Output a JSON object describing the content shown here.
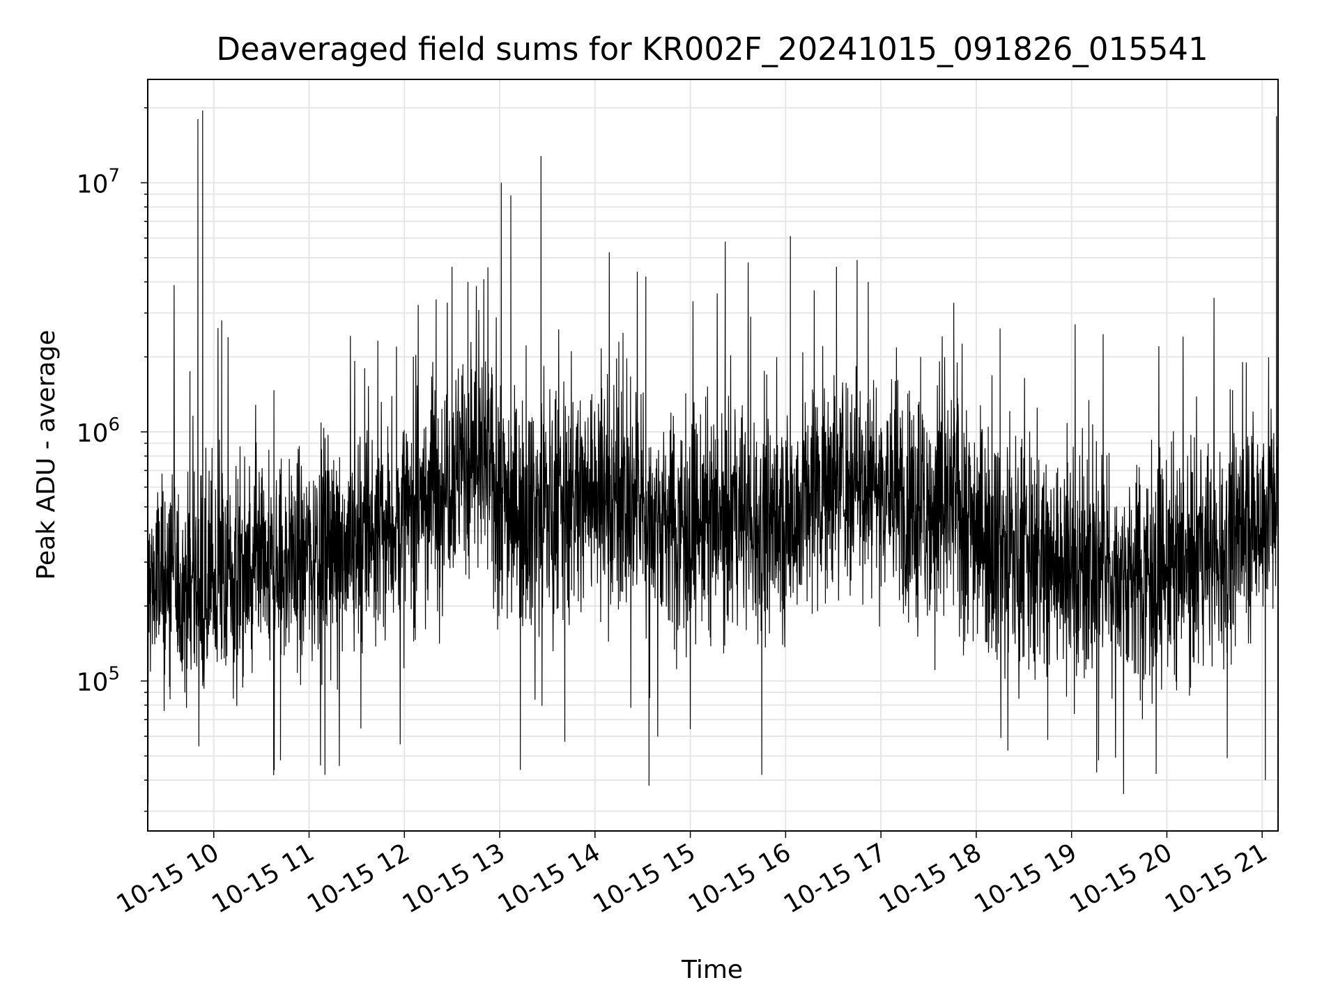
{
  "chart_data": {
    "type": "line",
    "title": "Deaveraged field sums for KR002F_20241015_091826_015541",
    "xlabel": "Time",
    "ylabel": "Peak ADU - average",
    "x_scale": "time",
    "y_scale": "log",
    "xlim": [
      "2024-10-15T09:18:26",
      "2024-10-15T21:10:00"
    ],
    "ylim": [
      25000,
      26000000
    ],
    "x_ticks": [
      {
        "value": "2024-10-15T10:00:00",
        "label": "10-15 10"
      },
      {
        "value": "2024-10-15T11:00:00",
        "label": "10-15 11"
      },
      {
        "value": "2024-10-15T12:00:00",
        "label": "10-15 12"
      },
      {
        "value": "2024-10-15T13:00:00",
        "label": "10-15 13"
      },
      {
        "value": "2024-10-15T14:00:00",
        "label": "10-15 14"
      },
      {
        "value": "2024-10-15T15:00:00",
        "label": "10-15 15"
      },
      {
        "value": "2024-10-15T16:00:00",
        "label": "10-15 16"
      },
      {
        "value": "2024-10-15T17:00:00",
        "label": "10-15 17"
      },
      {
        "value": "2024-10-15T18:00:00",
        "label": "10-15 18"
      },
      {
        "value": "2024-10-15T19:00:00",
        "label": "10-15 19"
      },
      {
        "value": "2024-10-15T20:00:00",
        "label": "10-15 20"
      },
      {
        "value": "2024-10-15T21:00:00",
        "label": "10-15 21"
      }
    ],
    "y_ticks": [
      {
        "value": 100000,
        "base": "10",
        "exp": "5"
      },
      {
        "value": 1000000,
        "base": "10",
        "exp": "6"
      },
      {
        "value": 10000000,
        "base": "10",
        "exp": "7"
      }
    ],
    "grid": true,
    "line_color": "#000000",
    "series": [
      {
        "baseline": [
          [
            "2024-10-15T09:18:26",
            250000
          ],
          [
            "2024-10-15T09:40:00",
            240000
          ],
          [
            "2024-10-15T10:00:00",
            250000
          ],
          [
            "2024-10-15T10:30:00",
            260000
          ],
          [
            "2024-10-15T11:00:00",
            330000
          ],
          [
            "2024-10-15T11:30:00",
            380000
          ],
          [
            "2024-10-15T12:00:00",
            430000
          ],
          [
            "2024-10-15T12:20:00",
            650000
          ],
          [
            "2024-10-15T12:45:00",
            800000
          ],
          [
            "2024-10-15T13:10:00",
            500000
          ],
          [
            "2024-10-15T13:40:00",
            500000
          ],
          [
            "2024-10-15T14:00:00",
            600000
          ],
          [
            "2024-10-15T14:30:00",
            480000
          ],
          [
            "2024-10-15T15:00:00",
            420000
          ],
          [
            "2024-10-15T15:30:00",
            450000
          ],
          [
            "2024-10-15T16:00:00",
            420000
          ],
          [
            "2024-10-15T16:20:00",
            650000
          ],
          [
            "2024-10-15T16:50:00",
            680000
          ],
          [
            "2024-10-15T17:20:00",
            500000
          ],
          [
            "2024-10-15T17:50:00",
            500000
          ],
          [
            "2024-10-15T18:20:00",
            330000
          ],
          [
            "2024-10-15T19:00:00",
            290000
          ],
          [
            "2024-10-15T19:30:00",
            270000
          ],
          [
            "2024-10-15T20:00:00",
            280000
          ],
          [
            "2024-10-15T20:30:00",
            320000
          ],
          [
            "2024-10-15T21:10:00",
            550000
          ]
        ],
        "spikes": [
          [
            "2024-10-15T09:18:40",
            32000
          ],
          [
            "2024-10-15T09:45:00",
            1750000
          ],
          [
            "2024-10-15T09:50:00",
            18000000
          ],
          [
            "2024-10-15T09:53:00",
            19500000
          ],
          [
            "2024-10-15T10:05:00",
            2800000
          ],
          [
            "2024-10-15T10:09:00",
            2400000
          ],
          [
            "2024-10-15T10:42:00",
            48000
          ],
          [
            "2024-10-15T11:10:00",
            42000
          ],
          [
            "2024-10-15T11:35:00",
            1800000
          ],
          [
            "2024-10-15T11:55:00",
            2200000
          ],
          [
            "2024-10-15T12:20:00",
            3400000
          ],
          [
            "2024-10-15T12:30:00",
            4600000
          ],
          [
            "2024-10-15T12:40:00",
            4000000
          ],
          [
            "2024-10-15T12:50:00",
            4100000
          ],
          [
            "2024-10-15T13:01:00",
            10000000
          ],
          [
            "2024-10-15T13:07:00",
            8900000
          ],
          [
            "2024-10-15T13:13:00",
            44000
          ],
          [
            "2024-10-15T13:26:00",
            12800000
          ],
          [
            "2024-10-15T13:41:00",
            57000
          ],
          [
            "2024-10-15T14:15:00",
            2300000
          ],
          [
            "2024-10-15T14:34:00",
            38000
          ],
          [
            "2024-10-15T14:32:00",
            4200000
          ],
          [
            "2024-10-15T15:22:00",
            5800000
          ],
          [
            "2024-10-15T15:38:00",
            2900000
          ],
          [
            "2024-10-15T15:45:00",
            42000
          ],
          [
            "2024-10-15T16:03:00",
            6100000
          ],
          [
            "2024-10-15T16:18:00",
            3700000
          ],
          [
            "2024-10-15T16:32:00",
            4600000
          ],
          [
            "2024-10-15T16:45:00",
            4900000
          ],
          [
            "2024-10-15T16:52:00",
            4000000
          ],
          [
            "2024-10-15T17:25:00",
            2000000
          ],
          [
            "2024-10-15T17:48:00",
            1900000
          ],
          [
            "2024-10-15T18:15:00",
            2600000
          ],
          [
            "2024-10-15T18:45:00",
            58000
          ],
          [
            "2024-10-15T19:17:00",
            48000
          ],
          [
            "2024-10-15T20:38:00",
            49000
          ],
          [
            "2024-10-15T20:50:00",
            1900000
          ],
          [
            "2024-10-15T21:02:00",
            40000
          ],
          [
            "2024-10-15T21:09:00",
            18500000
          ]
        ]
      }
    ]
  }
}
